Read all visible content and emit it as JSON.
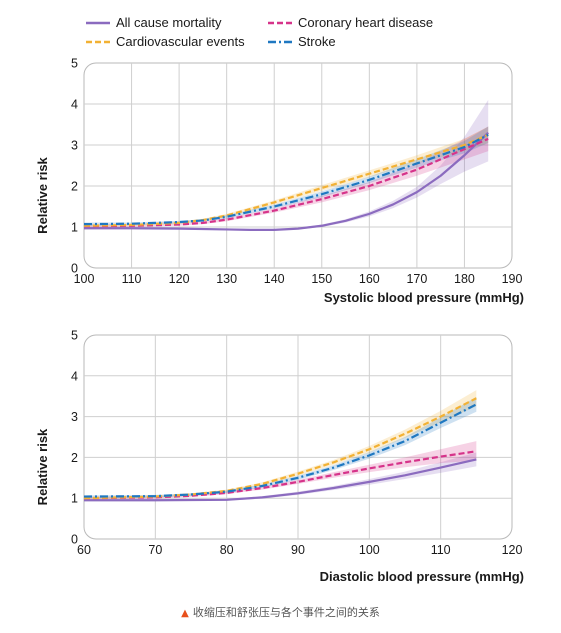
{
  "legend": [
    {
      "label": "All cause mortality",
      "color": "#8b6bbf",
      "dash": "solid"
    },
    {
      "label": "Coronary heart disease",
      "color": "#d6338a",
      "dash": "dash"
    },
    {
      "label": "Cardiovascular events",
      "color": "#f2b134",
      "dash": "dash"
    },
    {
      "label": "Stroke",
      "color": "#1f78c1",
      "dash": "dashdot"
    }
  ],
  "caption": "收缩压和舒张压与各个事件之间的关系",
  "chart_data": [
    {
      "type": "line",
      "xlabel": "Systolic blood pressure (mmHg)",
      "ylabel": "Relative risk",
      "xlim": [
        100,
        190
      ],
      "ylim": [
        0,
        5
      ],
      "xticks": [
        100,
        110,
        120,
        130,
        140,
        150,
        160,
        170,
        180,
        190
      ],
      "yticks": [
        0,
        1,
        2,
        3,
        4,
        5
      ],
      "grid": true,
      "series": [
        {
          "name": "All cause mortality",
          "color": "#8b6bbf",
          "x": [
            100,
            110,
            120,
            130,
            135,
            140,
            145,
            150,
            155,
            160,
            165,
            170,
            175,
            180,
            185
          ],
          "y": [
            0.97,
            0.97,
            0.96,
            0.94,
            0.93,
            0.93,
            0.96,
            1.03,
            1.15,
            1.32,
            1.55,
            1.85,
            2.25,
            2.75,
            3.3
          ],
          "ci_low": [
            0.94,
            0.95,
            0.94,
            0.92,
            0.91,
            0.91,
            0.94,
            1.0,
            1.11,
            1.26,
            1.46,
            1.72,
            2.05,
            2.35,
            2.6
          ],
          "ci_high": [
            1.0,
            0.99,
            0.98,
            0.96,
            0.95,
            0.95,
            0.98,
            1.06,
            1.19,
            1.38,
            1.64,
            1.98,
            2.5,
            3.2,
            4.1
          ]
        },
        {
          "name": "Coronary heart disease",
          "color": "#d6338a",
          "x": [
            100,
            110,
            120,
            125,
            130,
            140,
            150,
            160,
            170,
            180,
            185
          ],
          "y": [
            1.02,
            1.03,
            1.06,
            1.1,
            1.18,
            1.4,
            1.68,
            2.0,
            2.4,
            2.9,
            3.15
          ],
          "ci_low": [
            0.98,
            1.0,
            1.03,
            1.07,
            1.14,
            1.35,
            1.6,
            1.9,
            2.25,
            2.65,
            2.85
          ],
          "ci_high": [
            1.06,
            1.06,
            1.09,
            1.13,
            1.22,
            1.45,
            1.76,
            2.1,
            2.55,
            3.15,
            3.45
          ]
        },
        {
          "name": "Cardiovascular events",
          "color": "#f2b134",
          "x": [
            100,
            110,
            120,
            125,
            130,
            140,
            150,
            160,
            170,
            180,
            185
          ],
          "y": [
            1.03,
            1.05,
            1.1,
            1.17,
            1.28,
            1.6,
            1.95,
            2.3,
            2.65,
            3.0,
            3.25
          ],
          "ci_low": [
            1.0,
            1.02,
            1.07,
            1.14,
            1.24,
            1.55,
            1.88,
            2.22,
            2.55,
            2.85,
            3.05
          ],
          "ci_high": [
            1.06,
            1.08,
            1.13,
            1.2,
            1.32,
            1.65,
            2.02,
            2.38,
            2.75,
            3.15,
            3.45
          ]
        },
        {
          "name": "Stroke",
          "color": "#1f78c1",
          "x": [
            100,
            110,
            120,
            125,
            130,
            140,
            150,
            160,
            170,
            180,
            185
          ],
          "y": [
            1.07,
            1.08,
            1.12,
            1.16,
            1.25,
            1.5,
            1.8,
            2.15,
            2.55,
            2.95,
            3.25
          ],
          "ci_low": [
            1.03,
            1.05,
            1.09,
            1.13,
            1.21,
            1.45,
            1.73,
            2.07,
            2.45,
            2.8,
            3.05
          ],
          "ci_high": [
            1.11,
            1.11,
            1.15,
            1.19,
            1.29,
            1.55,
            1.87,
            2.23,
            2.65,
            3.1,
            3.45
          ]
        }
      ]
    },
    {
      "type": "line",
      "xlabel": "Diastolic blood pressure (mmHg)",
      "ylabel": "Relative risk",
      "xlim": [
        60,
        120
      ],
      "ylim": [
        0,
        5
      ],
      "xticks": [
        60,
        70,
        80,
        90,
        100,
        110,
        120
      ],
      "yticks": [
        0,
        1,
        2,
        3,
        4,
        5
      ],
      "grid": true,
      "series": [
        {
          "name": "All cause mortality",
          "color": "#8b6bbf",
          "x": [
            60,
            70,
            80,
            85,
            90,
            95,
            100,
            105,
            110,
            115
          ],
          "y": [
            0.95,
            0.95,
            0.96,
            1.02,
            1.12,
            1.25,
            1.4,
            1.56,
            1.75,
            1.95
          ],
          "ci_low": [
            0.93,
            0.93,
            0.94,
            0.99,
            1.08,
            1.2,
            1.33,
            1.47,
            1.62,
            1.78
          ],
          "ci_high": [
            0.97,
            0.97,
            0.98,
            1.05,
            1.16,
            1.3,
            1.47,
            1.65,
            1.88,
            2.12
          ]
        },
        {
          "name": "Coronary heart disease",
          "color": "#d6338a",
          "x": [
            60,
            70,
            75,
            80,
            85,
            90,
            95,
            100,
            105,
            110,
            115
          ],
          "y": [
            1.0,
            1.02,
            1.06,
            1.13,
            1.25,
            1.4,
            1.57,
            1.73,
            1.88,
            2.02,
            2.15
          ],
          "ci_low": [
            0.97,
            0.99,
            1.03,
            1.1,
            1.21,
            1.35,
            1.5,
            1.64,
            1.76,
            1.86,
            1.92
          ],
          "ci_high": [
            1.03,
            1.05,
            1.09,
            1.16,
            1.29,
            1.45,
            1.64,
            1.82,
            2.0,
            2.2,
            2.4
          ]
        },
        {
          "name": "Cardiovascular events",
          "color": "#f2b134",
          "x": [
            60,
            70,
            75,
            80,
            85,
            90,
            95,
            100,
            105,
            110,
            115
          ],
          "y": [
            1.0,
            1.04,
            1.09,
            1.18,
            1.35,
            1.6,
            1.88,
            2.2,
            2.58,
            3.0,
            3.45
          ],
          "ci_low": [
            0.97,
            1.01,
            1.06,
            1.15,
            1.31,
            1.55,
            1.82,
            2.12,
            2.48,
            2.86,
            3.25
          ],
          "ci_high": [
            1.03,
            1.07,
            1.12,
            1.21,
            1.39,
            1.65,
            1.94,
            2.28,
            2.68,
            3.14,
            3.65
          ]
        },
        {
          "name": "Stroke",
          "color": "#1f78c1",
          "x": [
            60,
            70,
            75,
            80,
            85,
            90,
            95,
            100,
            105,
            110,
            115
          ],
          "y": [
            1.04,
            1.05,
            1.09,
            1.16,
            1.3,
            1.5,
            1.75,
            2.05,
            2.4,
            2.85,
            3.3
          ],
          "ci_low": [
            1.01,
            1.02,
            1.06,
            1.13,
            1.26,
            1.45,
            1.69,
            1.97,
            2.3,
            2.72,
            3.12
          ],
          "ci_high": [
            1.07,
            1.08,
            1.12,
            1.19,
            1.34,
            1.55,
            1.81,
            2.13,
            2.5,
            2.98,
            3.48
          ]
        }
      ]
    }
  ]
}
